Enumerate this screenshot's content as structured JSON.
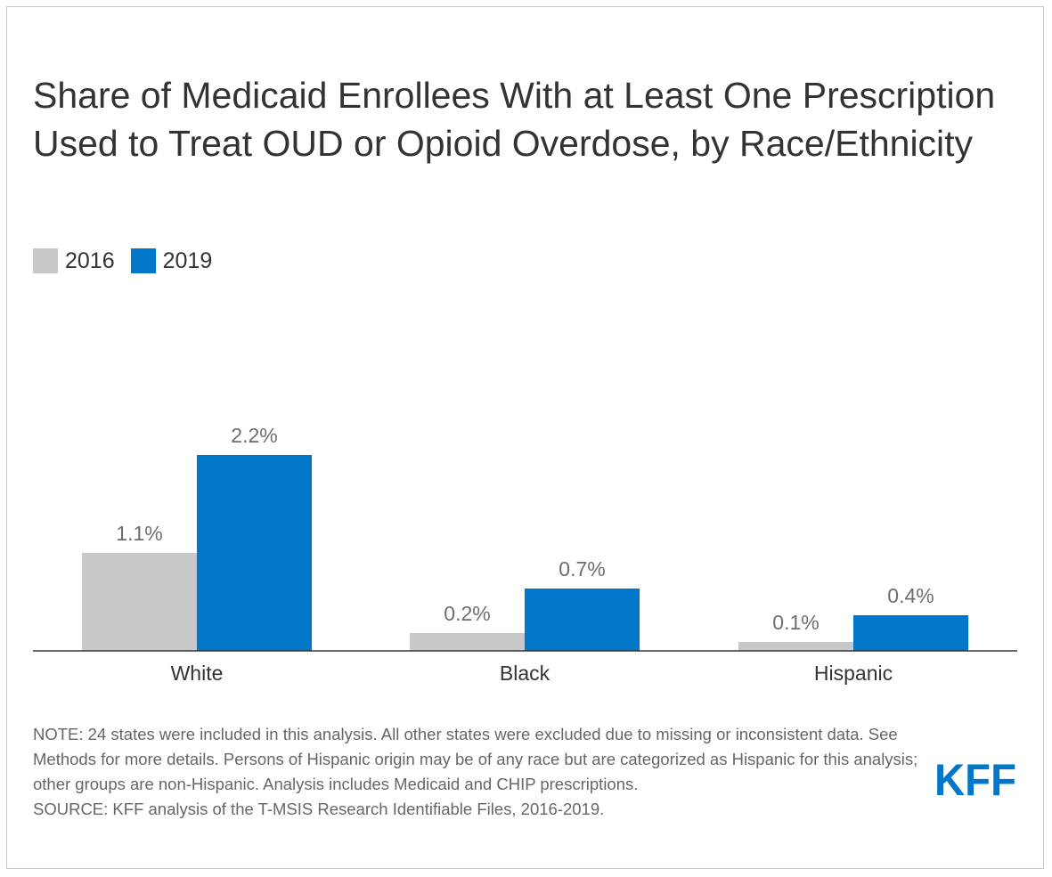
{
  "title": "Share of Medicaid Enrollees With at Least One Prescription Used to Treat OUD or Opioid Overdose, by Race/Ethnicity",
  "note": "NOTE: 24 states were included in this analysis. All other states were excluded due to missing or inconsistent data. See Methods for more details. Persons of Hispanic origin may be of any race but are categorized as Hispanic for this analysis; other groups are non-Hispanic. Analysis includes Medicaid and CHIP prescriptions.",
  "source": "SOURCE: KFF analysis of the T-MSIS Research Identifiable Files, 2016-2019.",
  "logo": "KFF",
  "colors": {
    "series_2016": "#c8c8c8",
    "series_2019": "#0077c8",
    "logo": "#0077c8"
  },
  "chart_data": {
    "type": "bar",
    "title": "Share of Medicaid Enrollees With at Least One Prescription Used to Treat OUD or Opioid Overdose, by Race/Ethnicity",
    "categories": [
      "White",
      "Black",
      "Hispanic"
    ],
    "series": [
      {
        "name": "2016",
        "values": [
          1.1,
          0.2,
          0.1
        ],
        "labels": [
          "1.1%",
          "0.2%",
          "0.1%"
        ]
      },
      {
        "name": "2019",
        "values": [
          2.2,
          0.7,
          0.4
        ],
        "labels": [
          "2.2%",
          "0.7%",
          "0.4%"
        ]
      }
    ],
    "xlabel": "",
    "ylabel": "",
    "ylim": [
      0,
      2.2
    ],
    "grid": false,
    "legend": "top-left"
  }
}
